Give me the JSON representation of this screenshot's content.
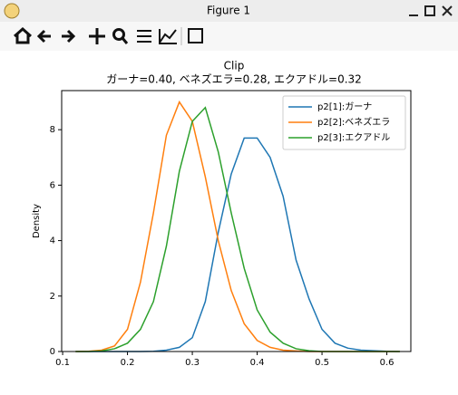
{
  "window": {
    "title": "Figure 1"
  },
  "chart_data": {
    "type": "line",
    "title": "Clip",
    "subtitle": "ガーナ=0.40,  ベネズエラ=0.28,  エクアドル=0.32",
    "ylabel": "Density",
    "x": [
      0.12,
      0.14,
      0.16,
      0.18,
      0.2,
      0.22,
      0.24,
      0.26,
      0.28,
      0.3,
      0.32,
      0.34,
      0.36,
      0.38,
      0.4,
      0.42,
      0.44,
      0.46,
      0.48,
      0.5,
      0.52,
      0.54,
      0.56,
      0.58,
      0.6,
      0.62
    ],
    "series": [
      {
        "name": "p2[1]:ガーナ",
        "color": "#1f77b4",
        "values": [
          0,
          0,
          0,
          0,
          0,
          0,
          0.01,
          0.05,
          0.15,
          0.5,
          1.8,
          4.3,
          6.4,
          7.7,
          7.7,
          7.0,
          5.6,
          3.3,
          1.9,
          0.8,
          0.3,
          0.12,
          0.05,
          0.03,
          0.01,
          0
        ]
      },
      {
        "name": "p2[2]:ベネズエラ",
        "color": "#ff7f0e",
        "values": [
          0,
          0.01,
          0.05,
          0.2,
          0.8,
          2.5,
          5.0,
          7.8,
          9.0,
          8.3,
          6.3,
          4.0,
          2.2,
          1.0,
          0.4,
          0.15,
          0.05,
          0.02,
          0,
          0,
          0,
          0,
          0,
          0,
          0,
          0
        ]
      },
      {
        "name": "p2[3]:エクアドル",
        "color": "#2ca02c",
        "values": [
          0,
          0,
          0.02,
          0.1,
          0.3,
          0.8,
          1.8,
          3.8,
          6.5,
          8.3,
          8.8,
          7.2,
          5.0,
          3.0,
          1.5,
          0.7,
          0.3,
          0.1,
          0.03,
          0,
          0,
          0,
          0,
          0,
          0,
          0
        ]
      }
    ],
    "xlim": [
      0.0985,
      0.637
    ],
    "ylim": [
      0,
      9.41
    ],
    "xticks": [
      0.1,
      0.2,
      0.3,
      0.4,
      0.5,
      0.6
    ],
    "yticks": [
      0,
      2,
      4,
      6,
      8
    ],
    "legend": "upper right"
  }
}
